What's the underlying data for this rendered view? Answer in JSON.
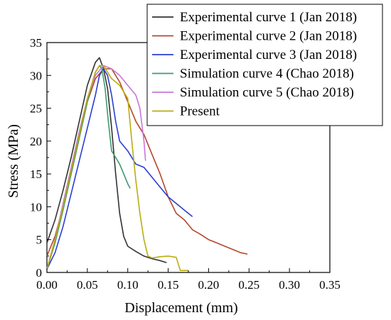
{
  "chart_data": {
    "type": "line",
    "xlabel": "Displacement (mm)",
    "ylabel": "Stress (MPa)",
    "xlim": [
      0,
      0.35
    ],
    "ylim": [
      0,
      35
    ],
    "xticks": [
      0.0,
      0.05,
      0.1,
      0.15,
      0.2,
      0.25,
      0.3,
      0.35
    ],
    "xtick_labels": [
      "0.00",
      "0.05",
      "0.10",
      "0.15",
      "0.20",
      "0.25",
      "0.30",
      "0.35"
    ],
    "yticks": [
      0,
      5,
      10,
      15,
      20,
      25,
      30,
      35
    ],
    "ytick_labels": [
      "0",
      "5",
      "10",
      "15",
      "20",
      "25",
      "30",
      "35"
    ],
    "grid": false,
    "legend_position": "top-right",
    "series": [
      {
        "name": "Experimental curve 1 (Jan 2018)",
        "color": "#333333",
        "points": [
          [
            0,
            4.5
          ],
          [
            0.01,
            8
          ],
          [
            0.02,
            12.5
          ],
          [
            0.03,
            17.5
          ],
          [
            0.04,
            23
          ],
          [
            0.05,
            28.5
          ],
          [
            0.06,
            32
          ],
          [
            0.065,
            32.7
          ],
          [
            0.07,
            31
          ],
          [
            0.075,
            28
          ],
          [
            0.08,
            22
          ],
          [
            0.085,
            15
          ],
          [
            0.09,
            9
          ],
          [
            0.095,
            5.5
          ],
          [
            0.1,
            4
          ],
          [
            0.11,
            3.2
          ],
          [
            0.12,
            2.5
          ],
          [
            0.13,
            2.1
          ],
          [
            0.14,
            1.8
          ],
          [
            0.148,
            1.5
          ]
        ]
      },
      {
        "name": "Experimental curve 2 (Jan 2018)",
        "color": "#b5472b",
        "points": [
          [
            0,
            2.5
          ],
          [
            0.01,
            5.5
          ],
          [
            0.02,
            10
          ],
          [
            0.03,
            15
          ],
          [
            0.04,
            20.5
          ],
          [
            0.05,
            26
          ],
          [
            0.06,
            29.5
          ],
          [
            0.07,
            31
          ],
          [
            0.08,
            31
          ],
          [
            0.09,
            29
          ],
          [
            0.1,
            26
          ],
          [
            0.11,
            23
          ],
          [
            0.12,
            21
          ],
          [
            0.13,
            18
          ],
          [
            0.14,
            15
          ],
          [
            0.15,
            11.5
          ],
          [
            0.16,
            9
          ],
          [
            0.17,
            8
          ],
          [
            0.18,
            6.5
          ],
          [
            0.19,
            5.8
          ],
          [
            0.2,
            5
          ],
          [
            0.21,
            4.5
          ],
          [
            0.22,
            4
          ],
          [
            0.23,
            3.5
          ],
          [
            0.24,
            3
          ],
          [
            0.248,
            2.8
          ]
        ]
      },
      {
        "name": "Experimental curve 3 (Jan 2018)",
        "color": "#2a3fd1",
        "points": [
          [
            0,
            0.5
          ],
          [
            0.01,
            3
          ],
          [
            0.02,
            7
          ],
          [
            0.03,
            12
          ],
          [
            0.04,
            17
          ],
          [
            0.05,
            22
          ],
          [
            0.06,
            27
          ],
          [
            0.065,
            30
          ],
          [
            0.07,
            31
          ],
          [
            0.075,
            30
          ],
          [
            0.08,
            27
          ],
          [
            0.085,
            23
          ],
          [
            0.09,
            20
          ],
          [
            0.1,
            18.5
          ],
          [
            0.11,
            16.5
          ],
          [
            0.12,
            16
          ],
          [
            0.13,
            14.5
          ],
          [
            0.14,
            13
          ],
          [
            0.15,
            11.5
          ],
          [
            0.16,
            10.5
          ],
          [
            0.17,
            9.5
          ],
          [
            0.18,
            8.5
          ]
        ]
      },
      {
        "name": "Simulation curve 4 (Chao 2018)",
        "color": "#3e9a6a",
        "points": [
          [
            0,
            0.5
          ],
          [
            0.01,
            4.5
          ],
          [
            0.02,
            9.5
          ],
          [
            0.03,
            15
          ],
          [
            0.04,
            20.5
          ],
          [
            0.05,
            26
          ],
          [
            0.06,
            30.5
          ],
          [
            0.065,
            31.5
          ],
          [
            0.068,
            31
          ],
          [
            0.072,
            28
          ],
          [
            0.076,
            23
          ],
          [
            0.08,
            18.5
          ],
          [
            0.085,
            17.5
          ],
          [
            0.09,
            16.5
          ],
          [
            0.095,
            15
          ],
          [
            0.1,
            13.5
          ],
          [
            0.103,
            12.8
          ]
        ]
      },
      {
        "name": "Simulation curve 5 (Chao 2018)",
        "color": "#c777d9",
        "points": [
          [
            0,
            0.5
          ],
          [
            0.01,
            5
          ],
          [
            0.02,
            10.5
          ],
          [
            0.03,
            16
          ],
          [
            0.04,
            21.5
          ],
          [
            0.05,
            26.5
          ],
          [
            0.06,
            30
          ],
          [
            0.07,
            31.5
          ],
          [
            0.08,
            31
          ],
          [
            0.09,
            30
          ],
          [
            0.1,
            28.5
          ],
          [
            0.11,
            27
          ],
          [
            0.115,
            25
          ],
          [
            0.12,
            20
          ],
          [
            0.122,
            17
          ]
        ]
      },
      {
        "name": "Present",
        "color": "#b9ad0f",
        "points": [
          [
            0,
            0.5
          ],
          [
            0.01,
            5
          ],
          [
            0.02,
            10
          ],
          [
            0.03,
            15.5
          ],
          [
            0.04,
            21
          ],
          [
            0.05,
            26.5
          ],
          [
            0.06,
            30.5
          ],
          [
            0.065,
            31.5
          ],
          [
            0.07,
            31.5
          ],
          [
            0.075,
            30.5
          ],
          [
            0.08,
            29.5
          ],
          [
            0.085,
            29
          ],
          [
            0.09,
            28.5
          ],
          [
            0.1,
            26.5
          ],
          [
            0.105,
            20
          ],
          [
            0.11,
            14
          ],
          [
            0.115,
            9
          ],
          [
            0.12,
            5
          ],
          [
            0.125,
            2.5
          ],
          [
            0.13,
            2.2
          ],
          [
            0.14,
            2.4
          ],
          [
            0.15,
            2.5
          ],
          [
            0.16,
            2.3
          ],
          [
            0.165,
            0.3
          ],
          [
            0.175,
            0.3
          ]
        ]
      }
    ]
  }
}
